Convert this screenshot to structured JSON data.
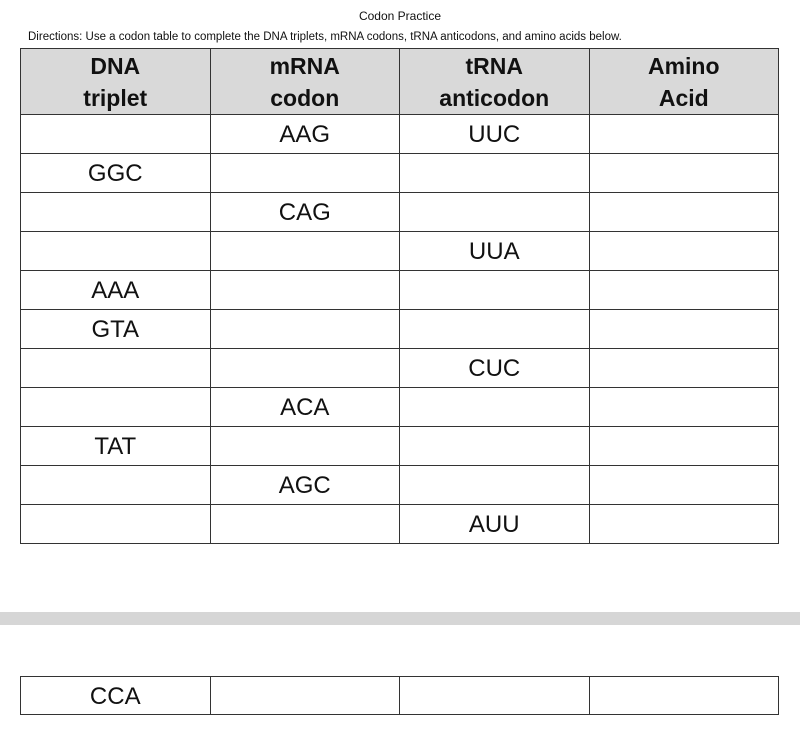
{
  "title": "Codon Practice",
  "directions": "Directions: Use a codon table to complete the DNA triplets, mRNA codons, tRNA anticodons, and amino acids below.",
  "headers": [
    [
      "DNA",
      "triplet"
    ],
    [
      "mRNA",
      "codon"
    ],
    [
      "tRNA",
      "anticodon"
    ],
    [
      "Amino",
      "Acid"
    ]
  ],
  "rows": [
    [
      "",
      "AAG",
      "UUC",
      ""
    ],
    [
      "GGC",
      "",
      "",
      ""
    ],
    [
      "",
      "CAG",
      "",
      ""
    ],
    [
      "",
      "",
      "UUA",
      ""
    ],
    [
      "AAA",
      "",
      "",
      ""
    ],
    [
      "GTA",
      "",
      "",
      ""
    ],
    [
      "",
      "",
      "CUC",
      ""
    ],
    [
      "",
      "ACA",
      "",
      ""
    ],
    [
      "TAT",
      "",
      "",
      ""
    ],
    [
      "",
      "AGC",
      "",
      ""
    ],
    [
      "",
      "",
      "AUU",
      ""
    ]
  ],
  "extra_rows": [
    [
      "CCA",
      "",
      "",
      ""
    ]
  ]
}
